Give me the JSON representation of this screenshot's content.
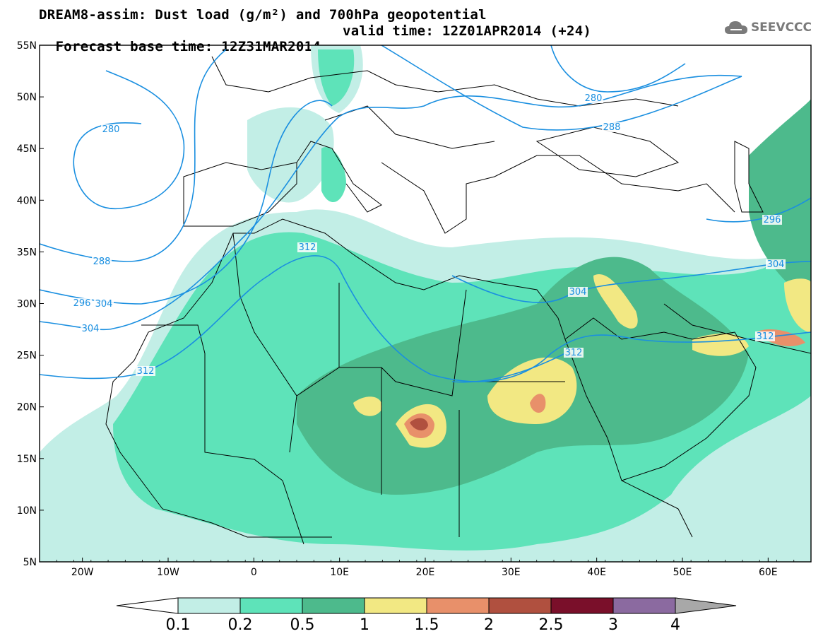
{
  "title": {
    "line1": "DREAM8-assim: Dust load (g/m²) and 700hPa geopotential",
    "line2_base": "Forecast base time: 12Z31MAR2014",
    "line2_valid": "valid time: 12Z01APR2014 (+24)"
  },
  "logo": {
    "text": "SEEVCCC",
    "icon": "cloud-icon"
  },
  "map": {
    "lon_range": [
      -25,
      65
    ],
    "lat_range": [
      5,
      55
    ],
    "lat_labels": [
      "55N",
      "50N",
      "45N",
      "40N",
      "35N",
      "30N",
      "25N",
      "20N",
      "15N",
      "10N",
      "5N"
    ],
    "lon_labels": [
      "20W",
      "10W",
      "0",
      "10E",
      "20E",
      "30E",
      "40E",
      "50E",
      "60E"
    ],
    "contour_labels": [
      "280",
      "288",
      "304",
      "280",
      "288",
      "296",
      "304",
      "312",
      "312",
      "304",
      "312",
      "296",
      "304",
      "312"
    ]
  },
  "colorbar": {
    "labels": [
      "0.1",
      "0.2",
      "0.5",
      "1",
      "1.5",
      "2",
      "2.5",
      "3",
      "4"
    ],
    "colors": [
      "#c2eee6",
      "#5ee3b9",
      "#4dba8c",
      "#f2e883",
      "#e8906a",
      "#b0503f",
      "#7a0f2a",
      "#8b6aa0",
      "#a8a8a8"
    ]
  },
  "colors": {
    "dust_lt": "#c2eee6",
    "dust_md": "#5ee3b9",
    "dust_dk": "#4dba8c",
    "dust_yel": "#f2e883",
    "dust_org": "#e8906a",
    "dust_red": "#b0503f",
    "contour": "#1a8fe0"
  }
}
